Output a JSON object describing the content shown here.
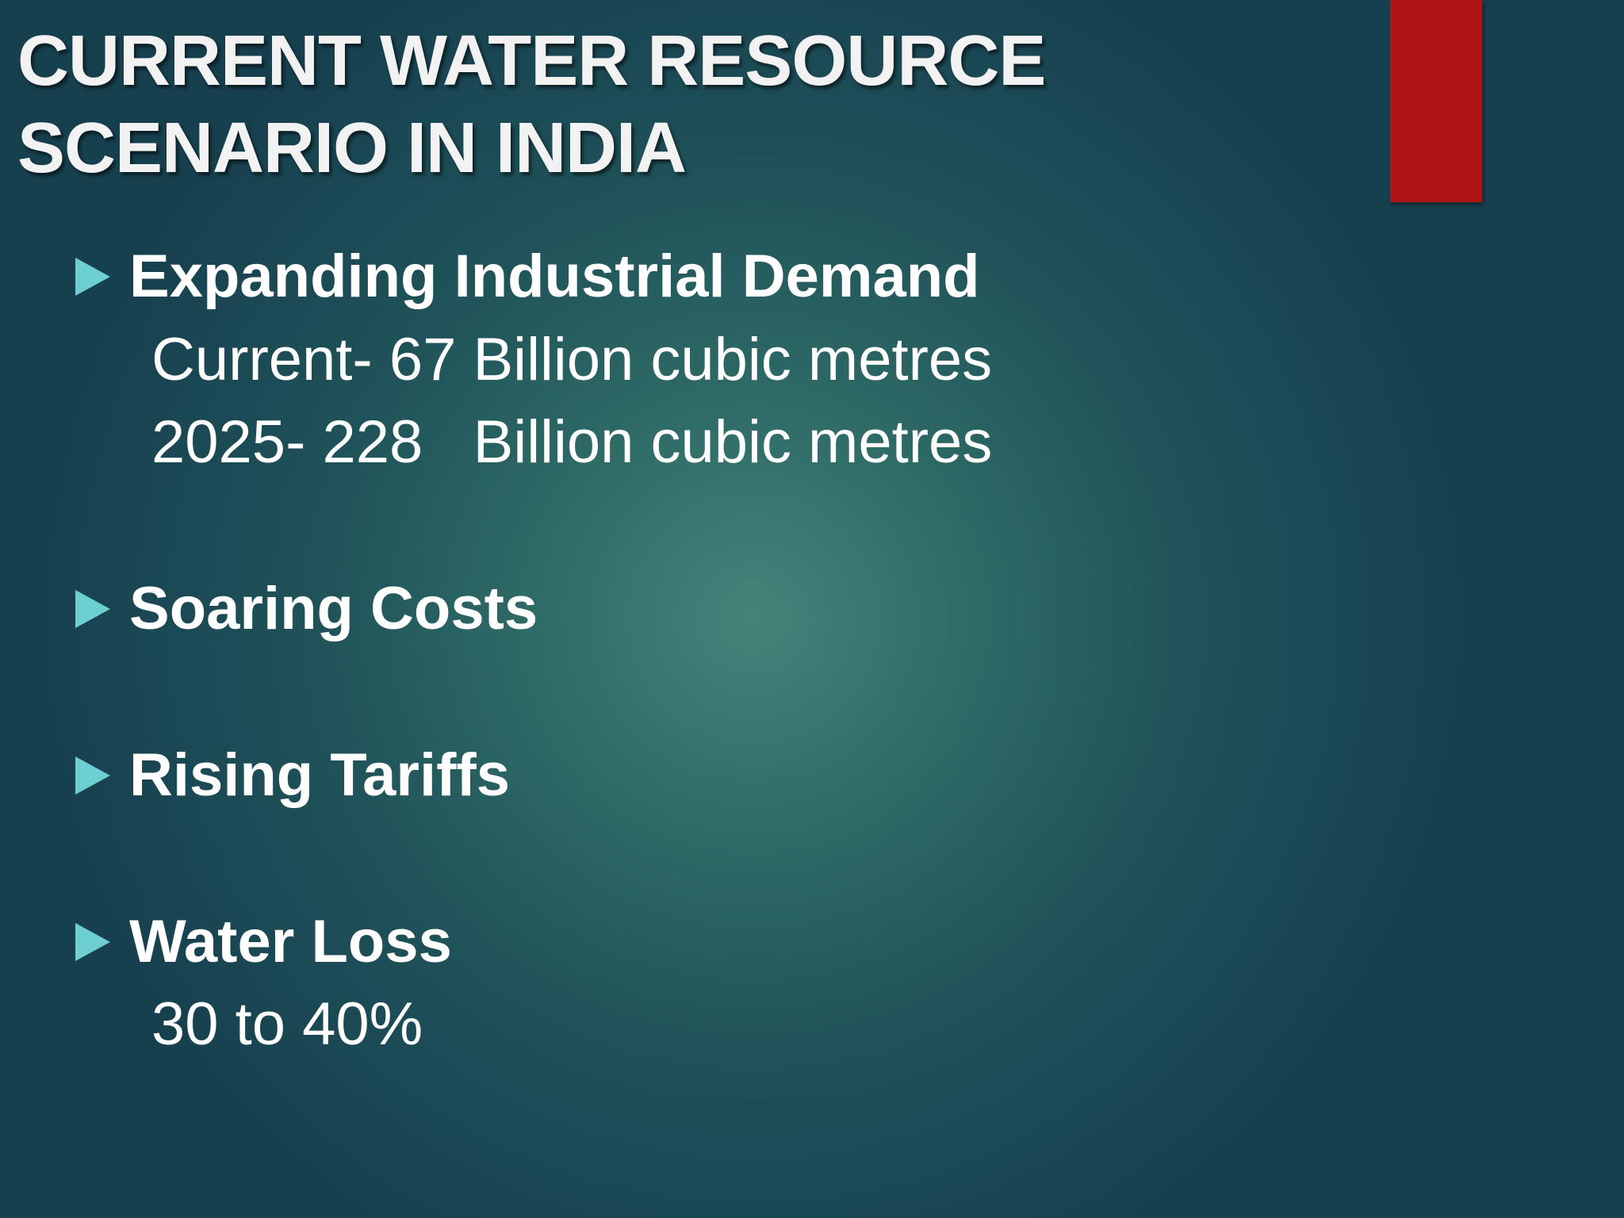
{
  "slide": {
    "title_lines": [
      "CURRENT WATER RESOURCE",
      "SCENARIO IN INDIA"
    ],
    "accent_color": "#b01515",
    "bullet_color": "#6ecfd2",
    "bullets": [
      {
        "heading": "Expanding Industrial Demand",
        "details": [
          "Current- 67 Billion cubic metres",
          "2025- 228   Billion cubic metres"
        ]
      },
      {
        "heading": "Soaring Costs",
        "details": []
      },
      {
        "heading": "Rising Tariffs",
        "details": []
      },
      {
        "heading": "Water Loss",
        "details": [
          "30 to 40%"
        ]
      }
    ]
  }
}
